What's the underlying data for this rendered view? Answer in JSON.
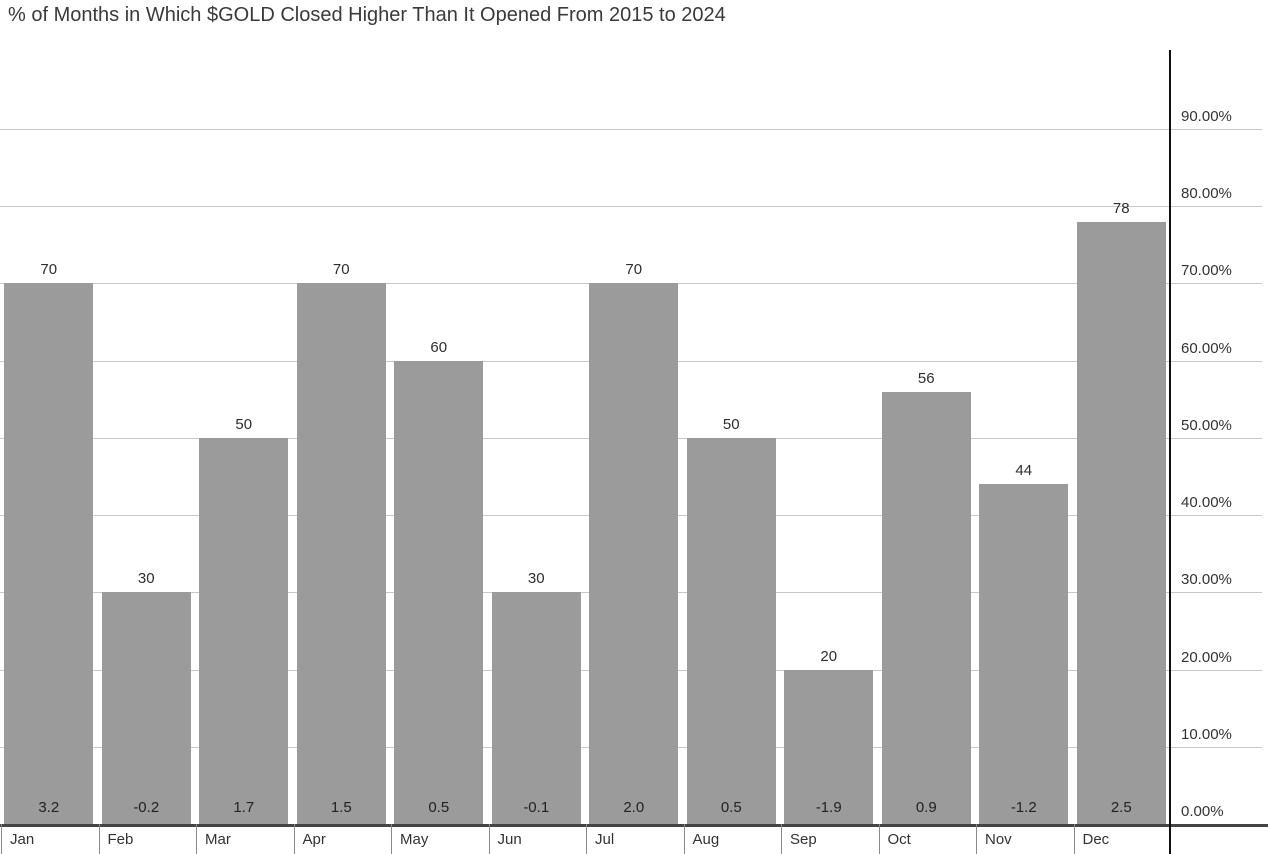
{
  "title": "% of Months in Which $GOLD Closed Higher Than It Opened From 2015 to 2024",
  "colors": {
    "background": "#ffffff",
    "bar": "#9b9b9b",
    "gridline": "#c8c8c8",
    "x_axis_line": "#454545",
    "y_axis_line": "#101010",
    "tick": "#8c8c8c",
    "text": "#333333"
  },
  "chart_data": {
    "type": "bar",
    "title": "% of Months in Which $GOLD Closed Higher Than It Opened From 2015 to 2024",
    "categories": [
      "Jan",
      "Feb",
      "Mar",
      "Apr",
      "May",
      "Jun",
      "Jul",
      "Aug",
      "Sep",
      "Oct",
      "Nov",
      "Dec"
    ],
    "values": [
      70,
      30,
      50,
      70,
      60,
      30,
      70,
      50,
      20,
      56,
      44,
      78
    ],
    "value_labels": [
      "70",
      "30",
      "50",
      "70",
      "60",
      "30",
      "70",
      "50",
      "20",
      "56",
      "44",
      "78"
    ],
    "footer_labels": [
      "3.2",
      "-0.2",
      "1.7",
      "1.5",
      "0.5",
      "-0.1",
      "2.0",
      "0.5",
      "-1.9",
      "0.9",
      "-1.2",
      "2.5"
    ],
    "xlabel": "",
    "ylabel": "",
    "y_axis": {
      "side": "right",
      "unit": "percent",
      "tick_values": [
        0,
        10,
        20,
        30,
        40,
        50,
        60,
        70,
        80,
        90
      ],
      "tick_labels": [
        "0.00%",
        "10.00%",
        "20.00%",
        "30.00%",
        "40.00%",
        "50.00%",
        "60.00%",
        "70.00%",
        "80.00%",
        "90.00%"
      ],
      "min": 0,
      "max": 90
    },
    "ylim": [
      0,
      100
    ],
    "grid": "horizontal",
    "legend": "none",
    "bar_color": "#9b9b9b"
  }
}
